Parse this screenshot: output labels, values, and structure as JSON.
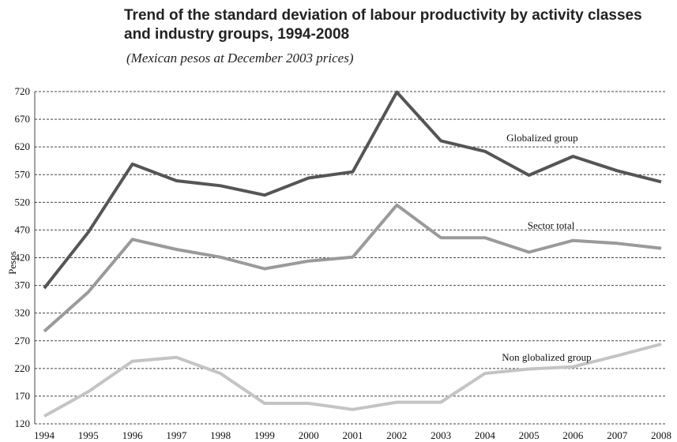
{
  "chart_data": {
    "type": "line",
    "title": "Trend of the standard deviation of labour productivity by activity classes and industry groups, 1994-2008",
    "subtitle": "(Mexican pesos at December 2003 prices)",
    "xlabel": "",
    "ylabel": "Pesos",
    "ylim": [
      120,
      720
    ],
    "yticks": [
      720,
      670,
      620,
      570,
      520,
      470,
      420,
      370,
      320,
      270,
      220,
      170,
      120
    ],
    "grid": true,
    "categories": [
      "1994",
      "1995",
      "1996",
      "1997",
      "1998",
      "1999",
      "2000",
      "2001",
      "2002",
      "2003",
      "2004",
      "2005",
      "2006",
      "2007",
      "2008"
    ],
    "series": [
      {
        "name": "Globalized group",
        "color": "#555555",
        "values": [
          365,
          466,
          589,
          559,
          550,
          533,
          564,
          575,
          719,
          631,
          612,
          569,
          603,
          577,
          557
        ]
      },
      {
        "name": "Sector total",
        "color": "#9a9a9a",
        "values": [
          287,
          358,
          453,
          435,
          421,
          400,
          414,
          421,
          515,
          456,
          456,
          430,
          451,
          446,
          437
        ]
      },
      {
        "name": "Non globalized group",
        "color": "#c4c4c4",
        "values": [
          134,
          178,
          233,
          240,
          211,
          157,
          157,
          146,
          159,
          159,
          211,
          219,
          223,
          243,
          264
        ]
      }
    ]
  }
}
